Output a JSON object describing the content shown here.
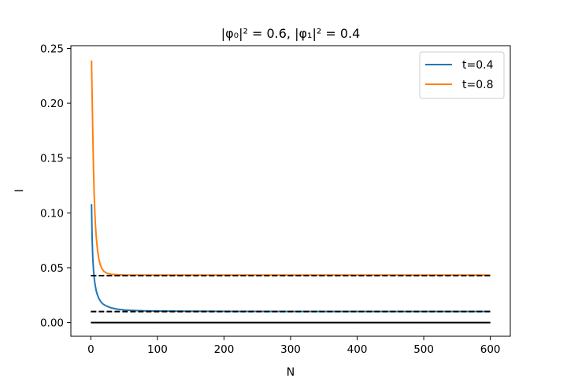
{
  "chart_data": {
    "type": "line",
    "title": "|φ₀|² = 0.6, |φ₁|² = 0.4",
    "xlabel": "N",
    "ylabel": "I",
    "xlim": [
      -30,
      630
    ],
    "ylim": [
      -0.0125,
      0.2525
    ],
    "xticks": [
      0,
      100,
      200,
      300,
      400,
      500,
      600
    ],
    "xtick_labels": [
      "0",
      "100",
      "200",
      "300",
      "400",
      "500",
      "600"
    ],
    "yticks": [
      0.0,
      0.05,
      0.1,
      0.15,
      0.2,
      0.25
    ],
    "ytick_labels": [
      "0.00",
      "0.05",
      "0.10",
      "0.15",
      "0.20",
      "0.25"
    ],
    "grid": false,
    "legend_position": "top-right",
    "series": [
      {
        "name": "t=0.4",
        "color": "#1f77b4",
        "style": "solid",
        "x": [
          1,
          2,
          3,
          4,
          5,
          6,
          8,
          10,
          12,
          15,
          18,
          22,
          26,
          30,
          35,
          40,
          50,
          60,
          80,
          100,
          150,
          200,
          300,
          400,
          500,
          600
        ],
        "y": [
          0.108,
          0.075,
          0.058,
          0.048,
          0.041,
          0.036,
          0.029,
          0.025,
          0.022,
          0.019,
          0.017,
          0.0155,
          0.0145,
          0.0135,
          0.0128,
          0.0122,
          0.0115,
          0.0111,
          0.0107,
          0.0105,
          0.0103,
          0.0102,
          0.0101,
          0.0101,
          0.0101,
          0.0101
        ]
      },
      {
        "name": "t=0.8",
        "color": "#ff7f0e",
        "style": "solid",
        "x": [
          1,
          2,
          3,
          4,
          5,
          6,
          7,
          8,
          10,
          12,
          14,
          16,
          18,
          20,
          25,
          30,
          40,
          50,
          100,
          200,
          300,
          400,
          500,
          600
        ],
        "y": [
          0.239,
          0.205,
          0.17,
          0.14,
          0.117,
          0.1,
          0.088,
          0.079,
          0.066,
          0.058,
          0.053,
          0.05,
          0.048,
          0.0465,
          0.0448,
          0.0441,
          0.0436,
          0.0434,
          0.0433,
          0.0433,
          0.0433,
          0.0433,
          0.0433,
          0.0433
        ]
      },
      {
        "color": "#000000",
        "style": "dashed",
        "x": [
          0,
          600
        ],
        "y": [
          0.0428,
          0.0428
        ]
      },
      {
        "color": "#000000",
        "style": "dashed",
        "x": [
          0,
          600
        ],
        "y": [
          0.01,
          0.01
        ]
      },
      {
        "color": "#000000",
        "style": "solid",
        "x": [
          0,
          600
        ],
        "y": [
          0.0,
          0.0
        ]
      }
    ]
  }
}
